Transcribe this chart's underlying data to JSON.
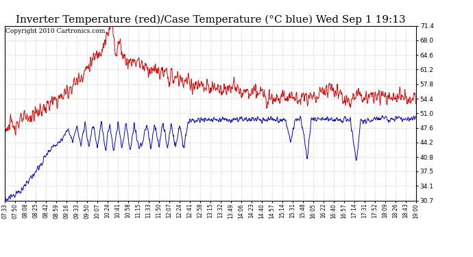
{
  "title": "Inverter Temperature (red)/Case Temperature (°C blue) Wed Sep 1 19:13",
  "copyright": "Copyright 2010 Cartronics.com",
  "yticks": [
    30.7,
    34.1,
    37.5,
    40.8,
    44.2,
    47.6,
    51.0,
    54.4,
    57.8,
    61.2,
    64.6,
    68.0,
    71.4
  ],
  "xtick_labels": [
    "07:33",
    "07:50",
    "08:08",
    "08:25",
    "08:42",
    "08:59",
    "09:16",
    "09:33",
    "09:50",
    "10:07",
    "10:24",
    "10:41",
    "10:58",
    "11:15",
    "11:33",
    "11:50",
    "12:07",
    "12:24",
    "12:41",
    "12:58",
    "13:15",
    "13:32",
    "13:49",
    "14:06",
    "14:23",
    "14:40",
    "14:57",
    "15:14",
    "15:31",
    "15:48",
    "16:05",
    "16:22",
    "16:40",
    "16:57",
    "17:14",
    "17:31",
    "17:52",
    "18:09",
    "18:26",
    "18:43",
    "19:00"
  ],
  "ymin": 30.7,
  "ymax": 71.4,
  "bg_color": "#ffffff",
  "plot_bg_color": "#ffffff",
  "grid_color": "#999999",
  "red_color": "#dd0000",
  "blue_color": "#0000cc",
  "title_fontsize": 11,
  "copyright_fontsize": 6.5,
  "red_key_points": [
    [
      0.0,
      47.5
    ],
    [
      0.06,
      50.0
    ],
    [
      0.1,
      52.5
    ],
    [
      0.14,
      55.0
    ],
    [
      0.16,
      57.0
    ],
    [
      0.18,
      59.0
    ],
    [
      0.2,
      61.5
    ],
    [
      0.22,
      64.0
    ],
    [
      0.245,
      68.0
    ],
    [
      0.26,
      71.4
    ],
    [
      0.265,
      69.0
    ],
    [
      0.27,
      65.0
    ],
    [
      0.28,
      68.0
    ],
    [
      0.285,
      65.0
    ],
    [
      0.3,
      63.0
    ],
    [
      0.32,
      63.5
    ],
    [
      0.34,
      62.0
    ],
    [
      0.36,
      61.0
    ],
    [
      0.38,
      60.5
    ],
    [
      0.4,
      59.5
    ],
    [
      0.42,
      59.0
    ],
    [
      0.44,
      58.5
    ],
    [
      0.46,
      57.5
    ],
    [
      0.48,
      57.0
    ],
    [
      0.5,
      56.5
    ],
    [
      0.52,
      57.0
    ],
    [
      0.54,
      56.5
    ],
    [
      0.55,
      57.5
    ],
    [
      0.57,
      56.0
    ],
    [
      0.59,
      55.5
    ],
    [
      0.61,
      56.0
    ],
    [
      0.63,
      55.5
    ],
    [
      0.65,
      55.0
    ],
    [
      0.67,
      54.8
    ],
    [
      0.69,
      55.0
    ],
    [
      0.71,
      54.5
    ],
    [
      0.73,
      55.0
    ],
    [
      0.75,
      54.5
    ],
    [
      0.77,
      56.0
    ],
    [
      0.79,
      57.5
    ],
    [
      0.82,
      55.0
    ],
    [
      0.84,
      54.0
    ],
    [
      0.86,
      55.5
    ],
    [
      0.88,
      54.5
    ],
    [
      0.9,
      55.0
    ],
    [
      0.92,
      54.8
    ],
    [
      0.94,
      54.5
    ],
    [
      0.96,
      54.8
    ],
    [
      0.98,
      54.5
    ],
    [
      1.0,
      54.5
    ]
  ],
  "blue_key_points": [
    [
      0.0,
      30.7
    ],
    [
      0.04,
      33.0
    ],
    [
      0.08,
      38.0
    ],
    [
      0.1,
      41.0
    ],
    [
      0.12,
      43.5
    ],
    [
      0.14,
      45.0
    ],
    [
      0.155,
      47.5
    ],
    [
      0.165,
      44.0
    ],
    [
      0.175,
      48.0
    ],
    [
      0.185,
      43.5
    ],
    [
      0.195,
      48.5
    ],
    [
      0.205,
      43.0
    ],
    [
      0.215,
      48.5
    ],
    [
      0.225,
      42.5
    ],
    [
      0.235,
      49.0
    ],
    [
      0.245,
      42.0
    ],
    [
      0.255,
      49.0
    ],
    [
      0.265,
      42.0
    ],
    [
      0.275,
      49.0
    ],
    [
      0.285,
      43.0
    ],
    [
      0.295,
      48.5
    ],
    [
      0.305,
      42.5
    ],
    [
      0.315,
      48.5
    ],
    [
      0.325,
      43.0
    ],
    [
      0.335,
      44.0
    ],
    [
      0.345,
      48.5
    ],
    [
      0.355,
      43.0
    ],
    [
      0.365,
      49.0
    ],
    [
      0.375,
      43.0
    ],
    [
      0.385,
      49.0
    ],
    [
      0.395,
      43.0
    ],
    [
      0.405,
      48.5
    ],
    [
      0.415,
      43.0
    ],
    [
      0.425,
      48.5
    ],
    [
      0.435,
      43.0
    ],
    [
      0.445,
      49.0
    ],
    [
      0.455,
      49.5
    ],
    [
      0.465,
      49.5
    ],
    [
      0.475,
      49.5
    ],
    [
      0.485,
      49.5
    ],
    [
      0.5,
      49.5
    ],
    [
      0.52,
      49.5
    ],
    [
      0.54,
      49.5
    ],
    [
      0.56,
      49.5
    ],
    [
      0.58,
      49.5
    ],
    [
      0.6,
      49.5
    ],
    [
      0.62,
      49.5
    ],
    [
      0.64,
      49.5
    ],
    [
      0.66,
      49.5
    ],
    [
      0.68,
      49.5
    ],
    [
      0.695,
      44.5
    ],
    [
      0.705,
      49.5
    ],
    [
      0.72,
      49.5
    ],
    [
      0.735,
      40.5
    ],
    [
      0.745,
      49.5
    ],
    [
      0.76,
      49.5
    ],
    [
      0.78,
      49.5
    ],
    [
      0.8,
      49.5
    ],
    [
      0.82,
      49.5
    ],
    [
      0.84,
      49.5
    ],
    [
      0.855,
      40.0
    ],
    [
      0.865,
      49.0
    ],
    [
      0.88,
      49.0
    ],
    [
      0.9,
      49.5
    ],
    [
      0.92,
      50.0
    ],
    [
      0.94,
      49.5
    ],
    [
      0.96,
      50.0
    ],
    [
      0.98,
      49.5
    ],
    [
      1.0,
      50.0
    ]
  ]
}
